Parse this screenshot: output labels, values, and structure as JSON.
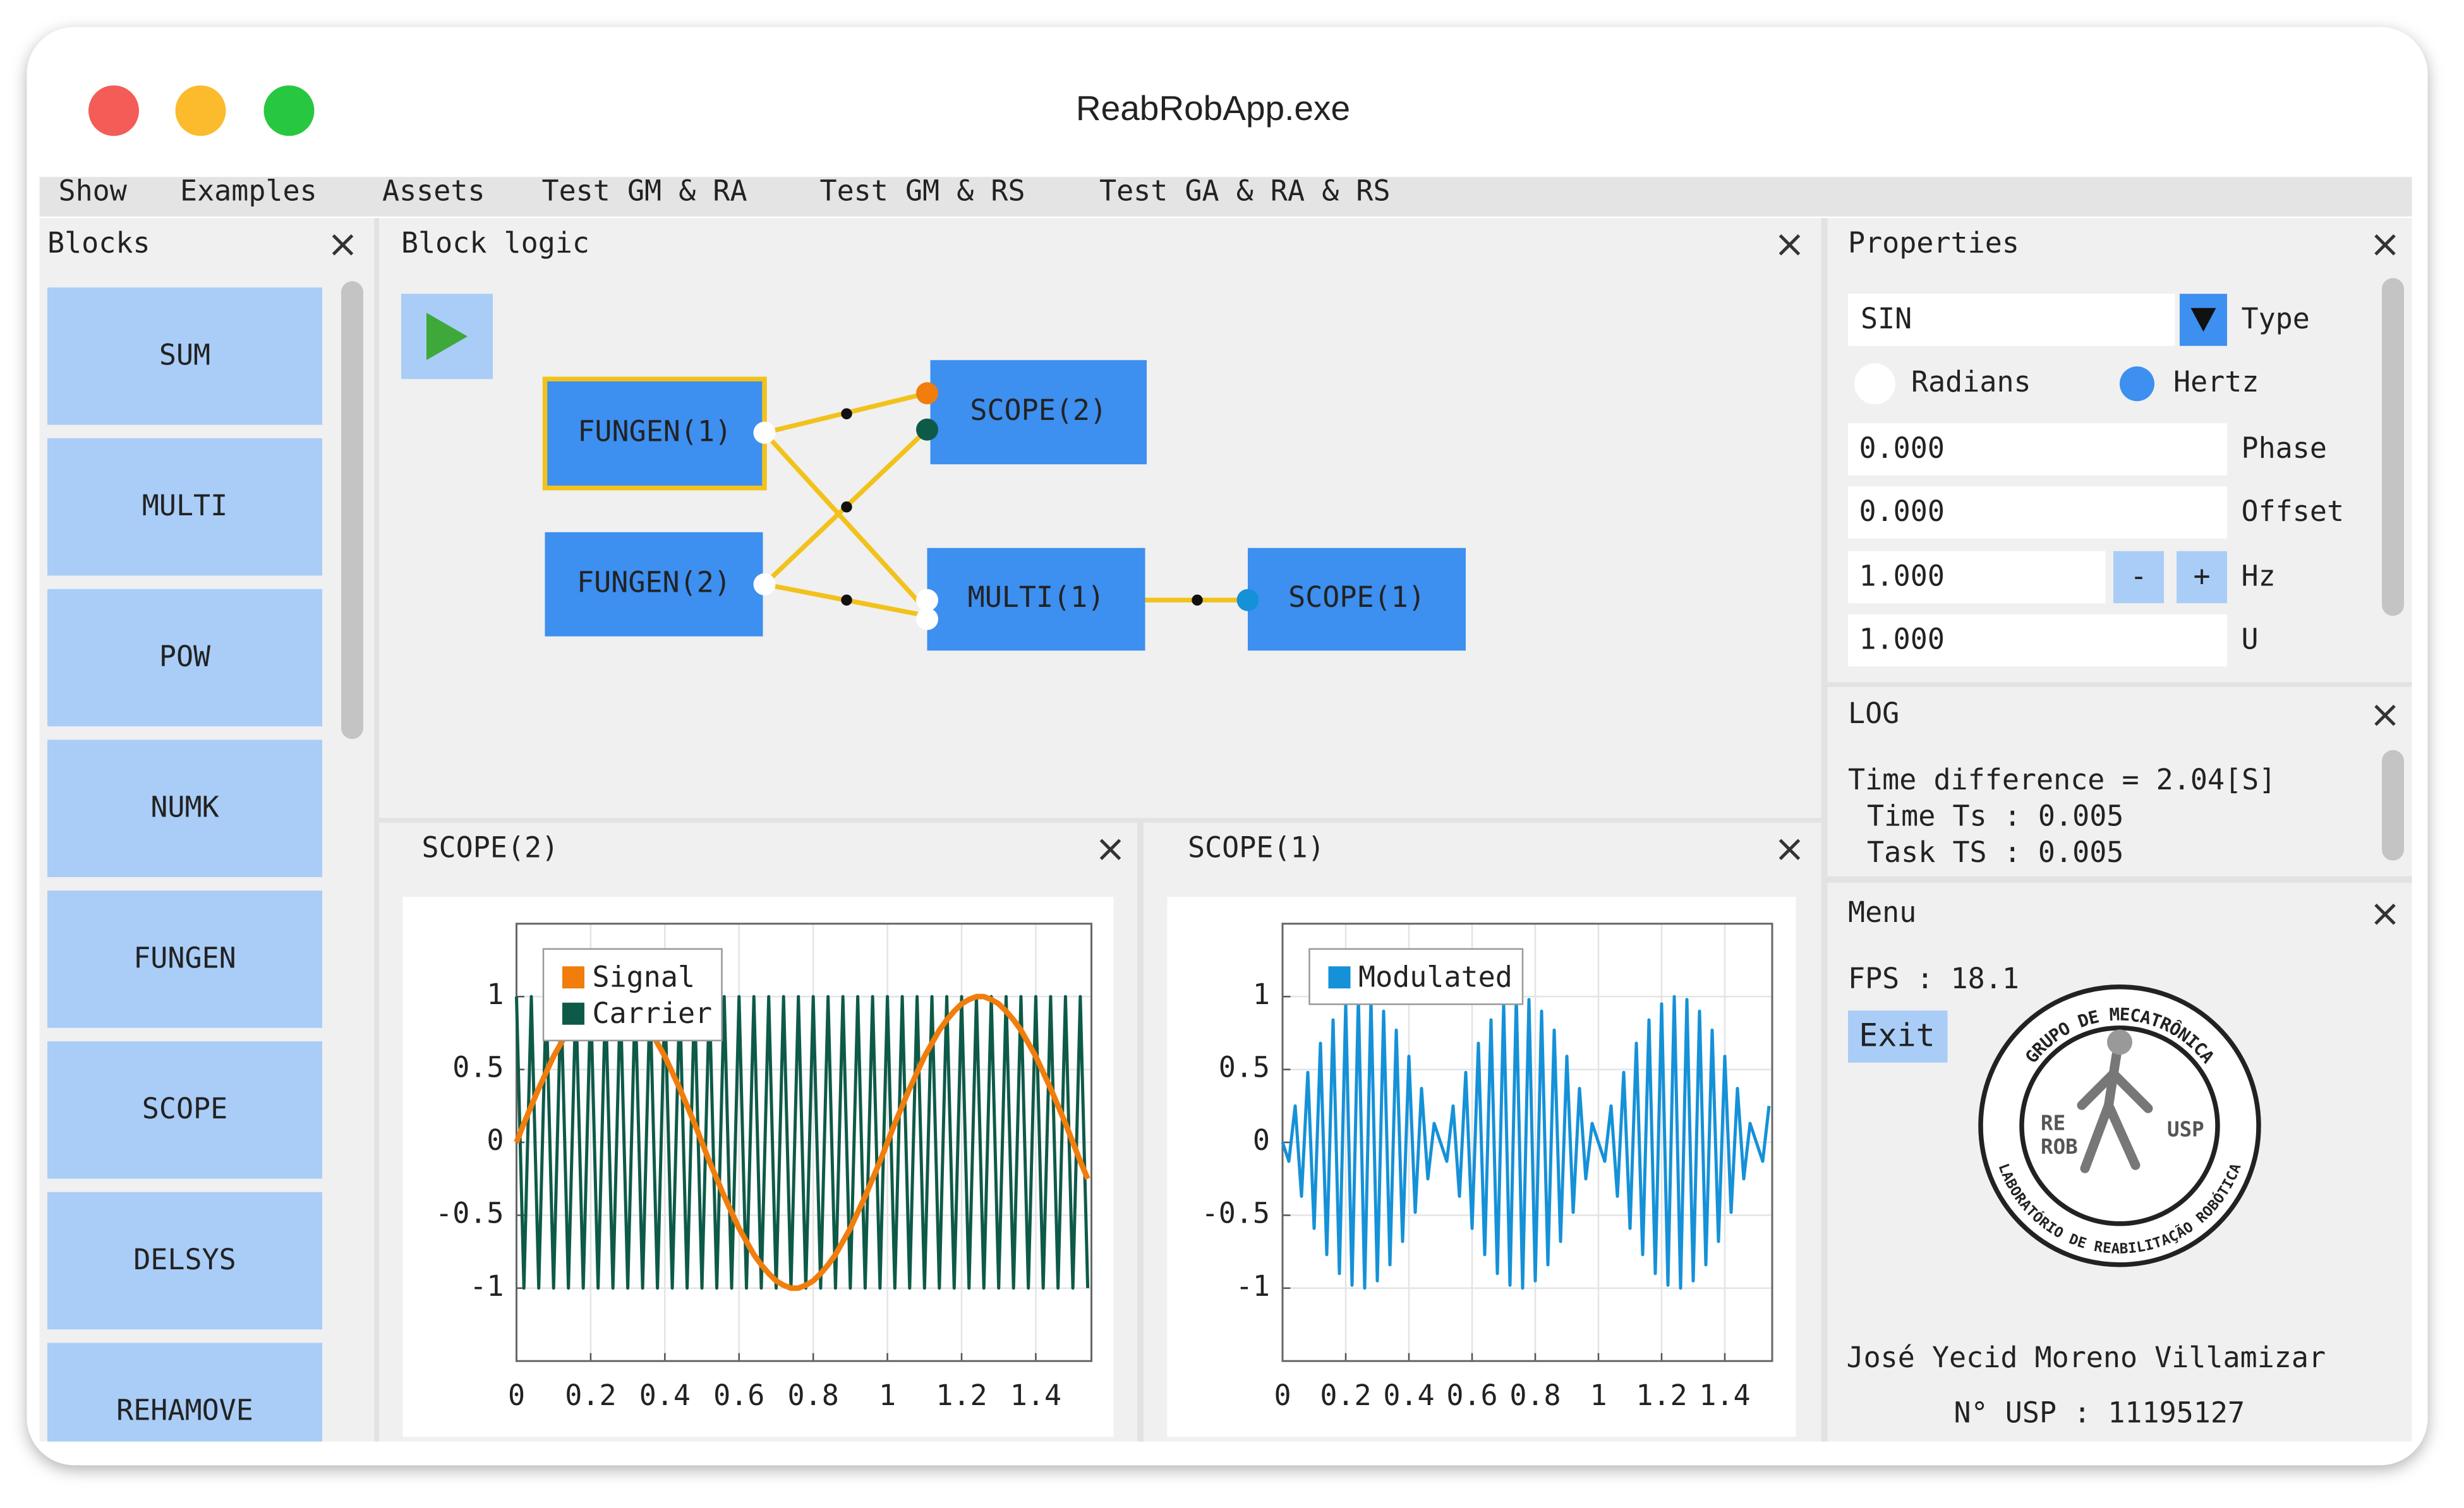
{
  "window": {
    "title": "ReabRobApp.exe"
  },
  "menu_bar": [
    "Show",
    "Examples",
    "Assets",
    "Test GM & RA",
    "Test GM & RS",
    "Test GA & RA & RS"
  ],
  "blocks_panel": {
    "title": "Blocks",
    "items": [
      "SUM",
      "MULTI",
      "POW",
      "NUMK",
      "FUNGEN",
      "SCOPE",
      "DELSYS",
      "REHAMOVE"
    ]
  },
  "block_logic": {
    "title": "Block logic",
    "nodes": [
      "FUNGEN(1)",
      "FUNGEN(2)",
      "SCOPE(2)",
      "MULTI(1)",
      "SCOPE(1)"
    ]
  },
  "properties": {
    "title": "Properties",
    "type_value": "SIN",
    "type_label": "Type",
    "radio": [
      "Radians",
      "Hertz"
    ],
    "fields": [
      {
        "value": "0.000",
        "label": "Phase"
      },
      {
        "value": "0.000",
        "label": "Offset"
      },
      {
        "value": "1.000",
        "label": "Hz"
      },
      {
        "value": "1.000",
        "label": "U"
      }
    ],
    "minus": "-",
    "plus": "+"
  },
  "log": {
    "title": "LOG",
    "lines": [
      "Time difference = 2.04[S]",
      "Time Ts : 0.005",
      "Task TS : 0.005"
    ]
  },
  "menu_panel": {
    "title": "Menu",
    "fps": "FPS : 18.1",
    "exit": "Exit",
    "logo_texts": [
      "GRUPO DE MECATRÔNICA",
      "LABORATÓRIO DE REABILITAÇÃO ROBÓTICA",
      "RE",
      "ROB",
      "USP"
    ],
    "author": "José Yecid Moreno Villamizar",
    "usp": "N° USP : 11195127"
  },
  "chart_data": [
    {
      "type": "line",
      "title": "SCOPE(2)",
      "grid": true,
      "legend": "upper left",
      "xlim": [
        0,
        1.55
      ],
      "ylim": [
        -1.5,
        1.5
      ],
      "xticks": [
        0,
        0.2,
        0.4,
        0.6,
        0.8,
        1,
        1.2,
        1.4
      ],
      "yticks": [
        -1,
        -0.5,
        0,
        0.5,
        1
      ],
      "x": [
        0,
        0.02,
        0.04,
        0.06,
        0.08,
        0.1,
        0.12,
        0.14,
        0.16,
        0.18,
        0.2,
        0.22,
        0.24,
        0.26,
        0.28,
        0.3,
        0.32,
        0.34,
        0.36,
        0.38,
        0.4,
        0.42,
        0.44,
        0.46,
        0.48,
        0.5,
        0.52,
        0.54,
        0.56,
        0.58,
        0.6,
        0.62,
        0.64,
        0.66,
        0.68,
        0.7,
        0.72,
        0.74,
        0.76,
        0.78,
        0.8,
        0.82,
        0.84,
        0.86,
        0.88,
        0.9,
        0.92,
        0.94,
        0.96,
        0.98,
        1,
        1.02,
        1.04,
        1.06,
        1.08,
        1.1,
        1.12,
        1.14,
        1.16,
        1.18,
        1.2,
        1.22,
        1.24,
        1.26,
        1.28,
        1.3,
        1.32,
        1.34,
        1.36,
        1.38,
        1.4,
        1.42,
        1.44,
        1.46,
        1.48,
        1.5,
        1.52,
        1.54
      ],
      "series": [
        {
          "name": "Signal",
          "color": "#f07d0c",
          "values": [
            0,
            0.13,
            0.25,
            0.37,
            0.48,
            0.59,
            0.68,
            0.77,
            0.84,
            0.9,
            0.95,
            0.98,
            1,
            1,
            0.98,
            0.95,
            0.9,
            0.84,
            0.77,
            0.68,
            0.59,
            0.48,
            0.37,
            0.25,
            0.13,
            0,
            -0.13,
            -0.25,
            -0.37,
            -0.48,
            -0.59,
            -0.68,
            -0.77,
            -0.84,
            -0.9,
            -0.95,
            -0.98,
            -1,
            -1,
            -0.98,
            -0.95,
            -0.9,
            -0.84,
            -0.77,
            -0.68,
            -0.59,
            -0.48,
            -0.37,
            -0.25,
            -0.13,
            0,
            0.13,
            0.25,
            0.37,
            0.48,
            0.59,
            0.68,
            0.77,
            0.84,
            0.9,
            0.95,
            0.98,
            1,
            1,
            0.98,
            0.95,
            0.9,
            0.84,
            0.77,
            0.68,
            0.59,
            0.48,
            0.37,
            0.25,
            0.13,
            0,
            -0.13,
            -0.25
          ]
        },
        {
          "name": "Carrier",
          "color": "#0e5a48",
          "values": [
            1,
            -1,
            1,
            -1,
            1,
            -1,
            1,
            -1,
            1,
            -1,
            1,
            -1,
            1,
            -1,
            1,
            -1,
            1,
            -1,
            1,
            -1,
            1,
            -1,
            1,
            -1,
            1,
            -1,
            1,
            -1,
            1,
            -1,
            1,
            -1,
            1,
            -1,
            1,
            -1,
            1,
            -1,
            1,
            -1,
            1,
            -1,
            1,
            -1,
            1,
            -1,
            1,
            -1,
            1,
            -1,
            1,
            -1,
            1,
            -1,
            1,
            -1,
            1,
            -1,
            1,
            -1,
            1,
            -1,
            1,
            -1,
            1,
            -1,
            1,
            -1,
            1,
            -1,
            1,
            -1,
            1,
            -1,
            1,
            -1,
            1,
            -1
          ]
        }
      ]
    },
    {
      "type": "line",
      "title": "SCOPE(1)",
      "grid": true,
      "legend": "upper left",
      "xlim": [
        0,
        1.55
      ],
      "ylim": [
        -1.5,
        1.5
      ],
      "xticks": [
        0,
        0.2,
        0.4,
        0.6,
        0.8,
        1,
        1.2,
        1.4
      ],
      "yticks": [
        -1,
        -0.5,
        0,
        0.5,
        1
      ],
      "x": [
        0,
        0.02,
        0.04,
        0.06,
        0.08,
        0.1,
        0.12,
        0.14,
        0.16,
        0.18,
        0.2,
        0.22,
        0.24,
        0.26,
        0.28,
        0.3,
        0.32,
        0.34,
        0.36,
        0.38,
        0.4,
        0.42,
        0.44,
        0.46,
        0.48,
        0.5,
        0.52,
        0.54,
        0.56,
        0.58,
        0.6,
        0.62,
        0.64,
        0.66,
        0.68,
        0.7,
        0.72,
        0.74,
        0.76,
        0.78,
        0.8,
        0.82,
        0.84,
        0.86,
        0.88,
        0.9,
        0.92,
        0.94,
        0.96,
        0.98,
        1,
        1.02,
        1.04,
        1.06,
        1.08,
        1.1,
        1.12,
        1.14,
        1.16,
        1.18,
        1.2,
        1.22,
        1.24,
        1.26,
        1.28,
        1.3,
        1.32,
        1.34,
        1.36,
        1.38,
        1.4,
        1.42,
        1.44,
        1.46,
        1.48,
        1.5,
        1.52,
        1.54
      ],
      "series": [
        {
          "name": "Modulated",
          "color": "#1591d8",
          "values": [
            0,
            -0.13,
            0.25,
            -0.37,
            0.48,
            -0.59,
            0.68,
            -0.77,
            0.84,
            -0.9,
            0.95,
            -0.98,
            1,
            -1,
            0.98,
            -0.95,
            0.9,
            -0.84,
            0.77,
            -0.68,
            0.59,
            -0.48,
            0.37,
            -0.25,
            0.13,
            0,
            -0.13,
            0.25,
            -0.37,
            0.48,
            -0.59,
            0.68,
            -0.77,
            0.84,
            -0.9,
            0.95,
            -0.98,
            1,
            -1,
            0.98,
            -0.95,
            0.9,
            -0.84,
            0.77,
            -0.68,
            0.59,
            -0.48,
            0.37,
            -0.25,
            0.13,
            0,
            -0.13,
            0.25,
            -0.37,
            0.48,
            -0.59,
            0.68,
            -0.77,
            0.84,
            -0.9,
            0.95,
            -0.98,
            1,
            -1,
            0.98,
            -0.95,
            0.9,
            -0.84,
            0.77,
            -0.68,
            0.59,
            -0.48,
            0.37,
            -0.25,
            0.13,
            0,
            -0.13,
            0.25
          ]
        }
      ]
    }
  ]
}
